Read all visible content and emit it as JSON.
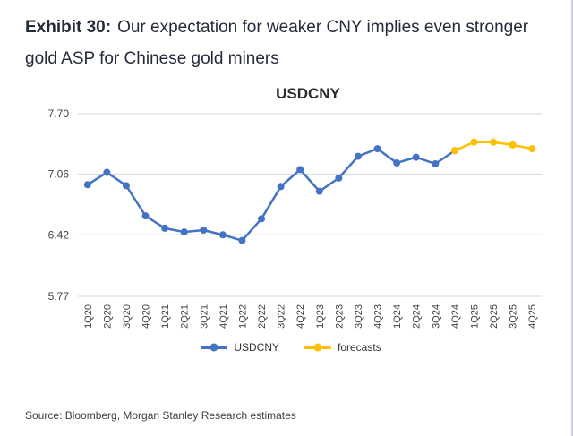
{
  "header": {
    "exhibit_label": "Exhibit 30:",
    "title_text": "Our expectation for weaker CNY implies even stronger gold ASP for Chinese gold miners"
  },
  "chart_data": {
    "type": "line",
    "title": "USDCNY",
    "categories": [
      "1Q20",
      "2Q20",
      "3Q20",
      "4Q20",
      "1Q21",
      "2Q21",
      "3Q21",
      "4Q21",
      "1Q22",
      "2Q22",
      "3Q22",
      "4Q22",
      "1Q23",
      "2Q23",
      "3Q23",
      "4Q23",
      "1Q24",
      "2Q24",
      "3Q24",
      "4Q24",
      "1Q25",
      "2Q25",
      "3Q25",
      "4Q25"
    ],
    "series": [
      {
        "name": "USDCNY",
        "color": "#4472C4",
        "values": [
          6.95,
          7.08,
          6.94,
          6.62,
          6.49,
          6.45,
          6.47,
          6.42,
          6.36,
          6.59,
          6.93,
          7.11,
          6.88,
          7.02,
          7.25,
          7.33,
          7.18,
          7.24,
          7.17,
          7.31,
          null,
          null,
          null,
          null
        ]
      },
      {
        "name": "forecasts",
        "color": "#FFC000",
        "values": [
          null,
          null,
          null,
          null,
          null,
          null,
          null,
          null,
          null,
          null,
          null,
          null,
          null,
          null,
          null,
          null,
          null,
          null,
          null,
          7.31,
          7.4,
          7.4,
          7.37,
          7.33
        ]
      }
    ],
    "yticks": [
      7.7,
      7.06,
      6.42,
      5.77
    ],
    "ylim": [
      5.77,
      7.7
    ],
    "grid": true,
    "grid_color": "#d6d6d6",
    "axis_label_color": "#404040",
    "legend_position": "bottom"
  },
  "footer": {
    "source": "Source: Bloomberg, Morgan Stanley Research estimates"
  }
}
